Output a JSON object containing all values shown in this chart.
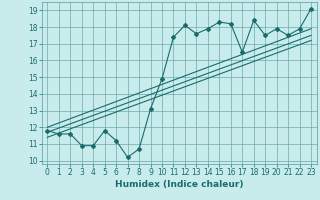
{
  "xlabel": "Humidex (Indice chaleur)",
  "ylabel": "",
  "bg_color": "#c8ecec",
  "grid_color": "#5a9a9a",
  "line_color": "#1a6b6b",
  "xlim": [
    -0.5,
    23.5
  ],
  "ylim": [
    9.8,
    19.5
  ],
  "xticks": [
    0,
    1,
    2,
    3,
    4,
    5,
    6,
    7,
    8,
    9,
    10,
    11,
    12,
    13,
    14,
    15,
    16,
    17,
    18,
    19,
    20,
    21,
    22,
    23
  ],
  "yticks": [
    10,
    11,
    12,
    13,
    14,
    15,
    16,
    17,
    18,
    19
  ],
  "curve_x": [
    0,
    1,
    2,
    3,
    4,
    5,
    6,
    7,
    8,
    9,
    10,
    11,
    12,
    13,
    14,
    15,
    16,
    17,
    18,
    19,
    20,
    21,
    22,
    23
  ],
  "curve_y": [
    11.8,
    11.6,
    11.6,
    10.9,
    10.9,
    11.8,
    11.2,
    10.2,
    10.7,
    13.1,
    14.9,
    17.4,
    18.1,
    17.6,
    17.9,
    18.3,
    18.2,
    16.5,
    18.4,
    17.5,
    17.9,
    17.5,
    17.9,
    19.1
  ],
  "line1_y_start": 11.4,
  "line1_y_end": 17.2,
  "line2_y_start": 11.7,
  "line2_y_end": 17.5,
  "line3_y_start": 12.0,
  "line3_y_end": 17.9,
  "xlabel_fontsize": 6.5,
  "tick_fontsize": 5.5,
  "marker": "D",
  "marker_size": 2.0,
  "line_width": 0.8
}
